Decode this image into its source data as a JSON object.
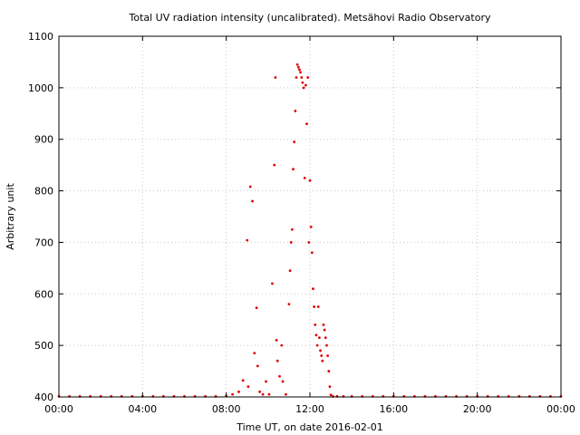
{
  "chart_data": {
    "type": "scatter",
    "title": "Total UV radiation intensity (uncalibrated). Metsähovi Radio Observatory",
    "xlabel": "Time UT, on date 2016-02-01",
    "ylabel": "Arbitrary unit",
    "xlim": [
      0,
      24
    ],
    "ylim": [
      400,
      1100
    ],
    "grid": true,
    "x_ticks": [
      0,
      4,
      8,
      12,
      16,
      20,
      24
    ],
    "x_tick_labels": [
      "00:00",
      "04:00",
      "08:00",
      "12:00",
      "16:00",
      "20:00",
      "00:00"
    ],
    "y_ticks": [
      400,
      500,
      600,
      700,
      800,
      900,
      1000,
      1100
    ],
    "y_tick_labels": [
      "400",
      "500",
      "600",
      "700",
      "800",
      "900",
      "1000",
      "1100"
    ],
    "point_color": "#e00000",
    "series": [
      {
        "values_note": "",
        "x": [
          0,
          0.5,
          1,
          1.5,
          2,
          2.5,
          3,
          3.5,
          4,
          4.5,
          5,
          5.5,
          6,
          6.5,
          7,
          7.5,
          8,
          8.3,
          8.6,
          8.8,
          9.0,
          9.05,
          9.15,
          9.25,
          9.35,
          9.45,
          9.5,
          9.6,
          9.75,
          9.9,
          10.05,
          10.2,
          10.3,
          10.35,
          10.4,
          10.45,
          10.55,
          10.65,
          10.7,
          10.85,
          11.0,
          11.05,
          11.1,
          11.15,
          11.2,
          11.25,
          11.3,
          11.35,
          11.4,
          11.45,
          11.5,
          11.55,
          11.6,
          11.65,
          11.7,
          11.75,
          11.8,
          11.85,
          11.9,
          11.95,
          12.0,
          12.05,
          12.1,
          12.15,
          12.2,
          12.25,
          12.3,
          12.35,
          12.4,
          12.45,
          12.5,
          12.55,
          12.6,
          12.65,
          12.7,
          12.75,
          12.8,
          12.85,
          12.9,
          12.95,
          13.0,
          13.1,
          13.3,
          13.6,
          14,
          14.5,
          15,
          15.5,
          16,
          16.5,
          17,
          17.5,
          18,
          18.5,
          19,
          19.5,
          20,
          20.5,
          21,
          21.5,
          22,
          22.5,
          23,
          23.5,
          24
        ],
        "y": [
          401,
          401,
          401,
          401,
          401,
          401,
          401,
          401,
          401,
          401,
          401,
          401,
          401,
          401,
          401,
          401,
          402,
          405,
          410,
          432,
          704,
          420,
          808,
          780,
          485,
          573,
          460,
          410,
          405,
          430,
          405,
          620,
          850,
          1020,
          510,
          470,
          440,
          500,
          430,
          405,
          580,
          645,
          700,
          725,
          842,
          895,
          955,
          1020,
          1045,
          1040,
          1035,
          1030,
          1020,
          1010,
          1000,
          825,
          1005,
          930,
          1020,
          700,
          820,
          730,
          680,
          610,
          575,
          540,
          520,
          500,
          575,
          515,
          490,
          480,
          470,
          540,
          530,
          515,
          500,
          480,
          450,
          420,
          404,
          401,
          401,
          401,
          401,
          401,
          401,
          401,
          401,
          401,
          401,
          401,
          401,
          401,
          401,
          401,
          401,
          401,
          401,
          401,
          401,
          401,
          401,
          401,
          401
        ]
      }
    ]
  }
}
